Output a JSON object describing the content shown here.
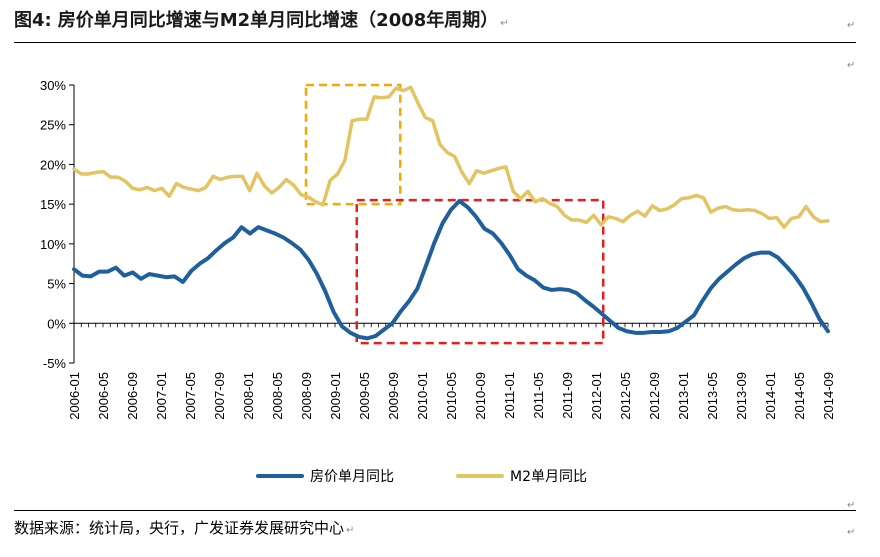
{
  "header": {
    "figure_label": "图4:",
    "title": "房价单月同比增速与M2单月同比增速（2008年周期）",
    "title_end_mark": "↵"
  },
  "source": "数据来源：统计局，央行，广发证券发展研究中心",
  "source_end_mark": "↵",
  "para_marks": [
    "↵",
    "↵",
    "↵",
    "↵"
  ],
  "chart_data": {
    "type": "line",
    "title": "房价单月同比增速与M2单月同比增速（2008年周期）",
    "xlabel": "",
    "ylabel": "",
    "ylim": [
      -5,
      30
    ],
    "y_ticks": [
      -5,
      0,
      5,
      10,
      15,
      20,
      25,
      30
    ],
    "y_tick_labels": [
      "-5%",
      "0%",
      "5%",
      "10%",
      "15%",
      "20%",
      "25%",
      "30%"
    ],
    "x_tick_labels": [
      "2006-01",
      "2006-05",
      "2006-09",
      "2007-01",
      "2007-05",
      "2007-09",
      "2008-01",
      "2008-05",
      "2008-09",
      "2009-01",
      "2009-05",
      "2009-09",
      "2010-01",
      "2010-05",
      "2010-09",
      "2011-01",
      "2011-05",
      "2011-09",
      "2012-01",
      "2012-05",
      "2012-09",
      "2013-01",
      "2013-05",
      "2013-09",
      "2014-01",
      "2014-05",
      "2014-09"
    ],
    "series": [
      {
        "name": "房价单月同比",
        "color": "#1f5f9b",
        "values": [
          6.8,
          6.0,
          5.9,
          6.5,
          6.5,
          7.0,
          6.0,
          6.4,
          5.6,
          6.2,
          6.0,
          5.8,
          5.9,
          5.2,
          6.6,
          7.5,
          8.2,
          9.2,
          10.1,
          10.8,
          12.1,
          11.3,
          12.1,
          11.7,
          11.3,
          10.8,
          10.1,
          9.3,
          8.0,
          6.2,
          4.0,
          1.4,
          -0.4,
          -1.2,
          -1.7,
          -1.9,
          -1.6,
          -0.8,
          0.0,
          1.5,
          2.8,
          4.4,
          7.2,
          10.1,
          12.6,
          14.3,
          15.4,
          14.6,
          13.4,
          11.9,
          11.3,
          10.1,
          8.6,
          6.8,
          6.0,
          5.4,
          4.5,
          4.2,
          4.3,
          4.2,
          3.8,
          2.9,
          2.1,
          1.2,
          0.3,
          -0.6,
          -1.0,
          -1.2,
          -1.2,
          -1.1,
          -1.1,
          -1.0,
          -0.6,
          0.2,
          1.0,
          2.8,
          4.4,
          5.6,
          6.5,
          7.4,
          8.2,
          8.7,
          8.9,
          8.9,
          8.3,
          7.2,
          6.0,
          4.5,
          2.6,
          0.5,
          -1.0
        ]
      },
      {
        "name": "M2单月同比",
        "color": "#e3c462",
        "values": [
          19.4,
          18.8,
          18.8,
          19.0,
          19.1,
          18.4,
          18.4,
          17.9,
          17.0,
          16.8,
          17.1,
          16.7,
          17.0,
          16.0,
          17.6,
          17.1,
          16.9,
          16.7,
          17.1,
          18.5,
          18.1,
          18.4,
          18.5,
          18.5,
          16.7,
          18.9,
          17.3,
          16.4,
          17.1,
          18.1,
          17.4,
          16.2,
          15.9,
          15.3,
          14.9,
          18.0,
          18.8,
          20.5,
          25.5,
          25.7,
          25.7,
          28.5,
          28.4,
          28.5,
          29.6,
          29.3,
          29.7,
          27.7,
          25.9,
          25.5,
          22.5,
          21.5,
          21.0,
          19.0,
          17.6,
          19.2,
          18.9,
          19.2,
          19.5,
          19.7,
          16.6,
          15.7,
          16.6,
          15.3,
          15.7,
          15.1,
          14.7,
          13.6,
          13.0,
          13.0,
          12.7,
          13.6,
          12.4,
          13.4,
          13.2,
          12.8,
          13.6,
          14.1,
          13.5,
          14.8,
          14.2,
          14.4,
          14.9,
          15.7,
          15.8,
          16.1,
          15.8,
          14.0,
          14.5,
          14.7,
          14.3,
          14.2,
          14.3,
          14.2,
          13.8,
          13.2,
          13.3,
          12.1,
          13.2,
          13.4,
          14.7,
          13.4,
          12.8,
          12.9
        ]
      }
    ],
    "annotations": [
      {
        "type": "dashed-box",
        "color": "#f5a800",
        "x_range": [
          "2008-09",
          "2009-10"
        ],
        "y_range": [
          15,
          30
        ]
      },
      {
        "type": "dashed-box",
        "color": "#e3201b",
        "x_range": [
          "2009-04",
          "2012-02"
        ],
        "y_range": [
          -2.5,
          15.5
        ]
      }
    ],
    "legend": {
      "position": "bottom",
      "entries": [
        "房价单月同比",
        "M2单月同比"
      ]
    }
  }
}
